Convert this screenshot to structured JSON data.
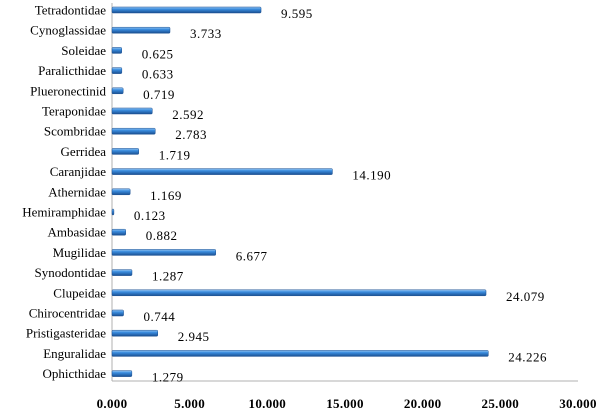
{
  "chart_data": {
    "type": "bar",
    "orientation": "horizontal",
    "title": "",
    "xlabel": "",
    "ylabel": "",
    "categories": [
      "Tetradontidae",
      "Cynoglassidae",
      "Soleidae",
      "Paralicthidae",
      "Plueronectinid",
      "Teraponidae",
      "Scombridae",
      "Gerridea",
      "Caranjidae",
      "Athernidae",
      "Hemiramphidae",
      "Ambasidae",
      "Mugilidae",
      "Synodontidae",
      "Clupeidae",
      "Chirocentridae",
      "Pristigasteridae",
      "Enguralidae",
      "Ophicthidae"
    ],
    "values": [
      9.595,
      3.733,
      0.625,
      0.633,
      0.719,
      2.592,
      2.783,
      1.719,
      14.19,
      1.169,
      0.123,
      0.882,
      6.677,
      1.287,
      24.079,
      0.744,
      2.945,
      24.226,
      1.279
    ],
    "value_labels": [
      "9.595",
      "3.733",
      "0.625",
      "0.633",
      "0.719",
      "2.592",
      "2.783",
      "1.719",
      "14.190",
      "1.169",
      "0.123",
      "0.882",
      "6.677",
      "1.287",
      "24.079",
      "0.744",
      "2.945",
      "24.226",
      "1.279"
    ],
    "xlim": [
      0,
      30
    ],
    "x_ticks": [
      0,
      5,
      10,
      15,
      20,
      25,
      30
    ],
    "x_tick_labels": [
      "0.000",
      "5.000",
      "10.000",
      "15.000",
      "20.000",
      "25.000",
      "30.000"
    ],
    "grid": false,
    "legend": "none",
    "bar_color": "#2e7fd6",
    "bar_dark": "#1a4f91",
    "bar_light": "#9cc8f2"
  }
}
